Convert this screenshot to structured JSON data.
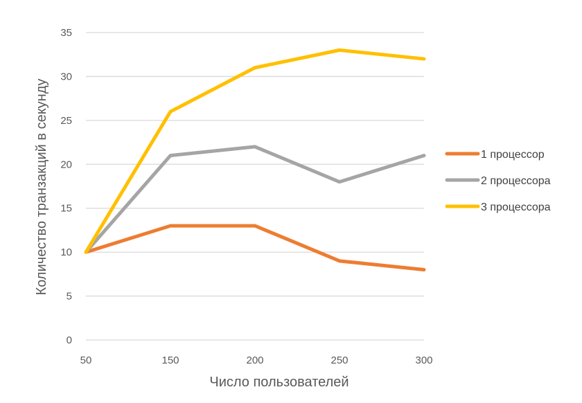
{
  "chart_data": {
    "type": "line",
    "xlabel": "Число пользователей",
    "ylabel": "Количество транзакций в секунду",
    "x": [
      50,
      150,
      200,
      250,
      300
    ],
    "categories": [
      "50",
      "150",
      "200",
      "250",
      "300"
    ],
    "ylim": [
      0,
      35
    ],
    "yticks": [
      0,
      5,
      10,
      15,
      20,
      25,
      30,
      35
    ],
    "grid": true,
    "legend_position": "right",
    "series": [
      {
        "name": "1 процессор",
        "color": "#ED7D31",
        "values": [
          10,
          13,
          13,
          9,
          8
        ]
      },
      {
        "name": "2 процессора",
        "color": "#A5A5A5",
        "values": [
          10,
          21,
          22,
          18,
          21
        ]
      },
      {
        "name": "3 процессора",
        "color": "#FFC000",
        "values": [
          10,
          26,
          31,
          33,
          32
        ]
      }
    ]
  }
}
